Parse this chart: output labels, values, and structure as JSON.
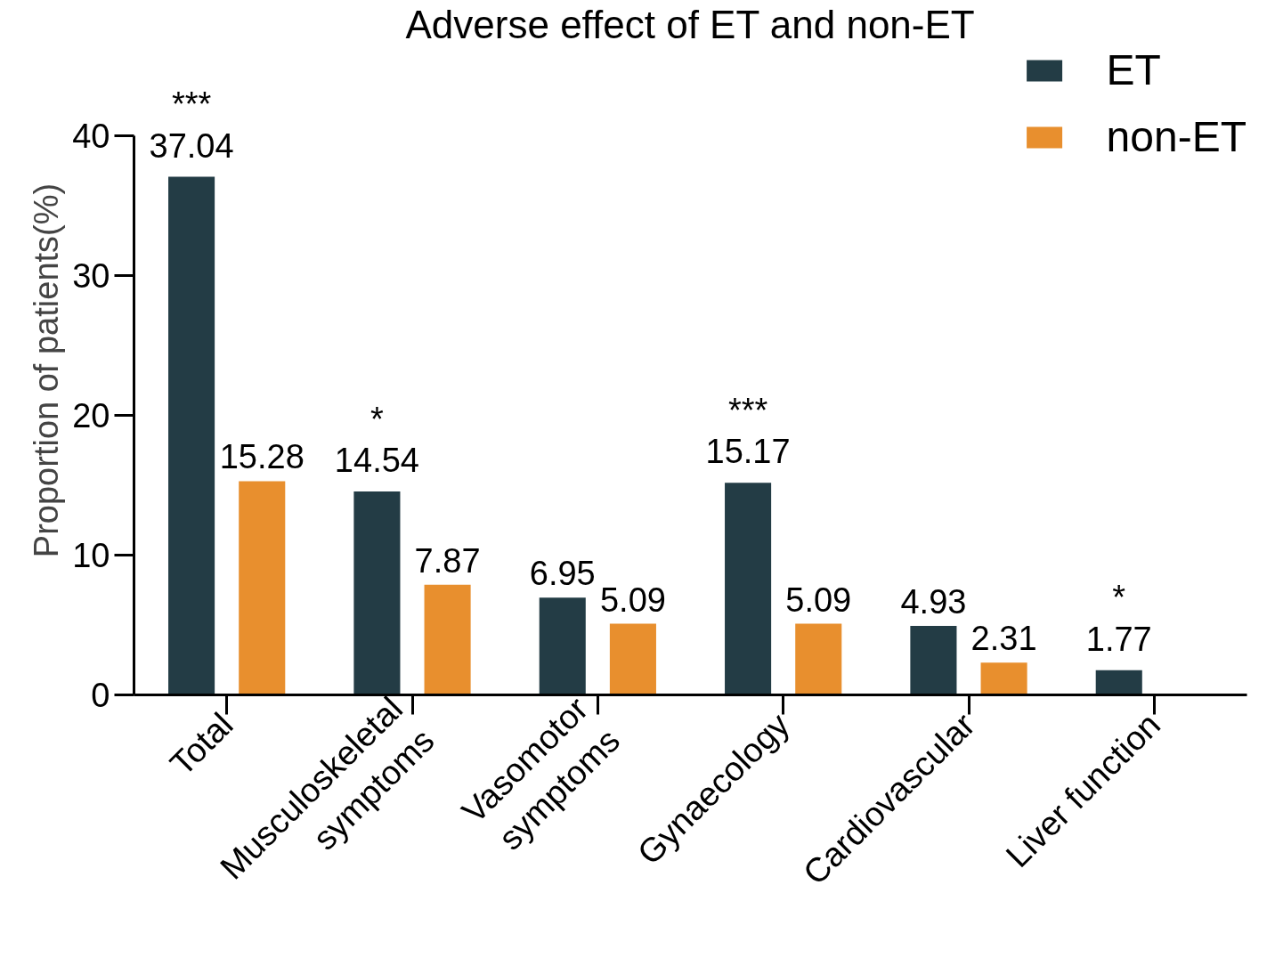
{
  "chart_data": {
    "type": "bar",
    "title": "Adverse effect of ET and non-ET",
    "ylabel": "Proportion of patients(%)",
    "categories": [
      "Total",
      "Musculoskeletal\nsymptoms",
      "Vasomotor\nsymptoms",
      "Gynaecology",
      "Cardiovascular",
      "Liver function"
    ],
    "series": [
      {
        "name": "ET",
        "color": "#233c45",
        "values": [
          37.04,
          14.54,
          6.95,
          15.17,
          4.93,
          1.77
        ],
        "value_labels": [
          "***\n37.04",
          "*\n14.54",
          "6.95",
          "***\n15.17",
          "4.93",
          "*\n1.77"
        ]
      },
      {
        "name": "non-ET",
        "color": "#e88f2e",
        "values": [
          15.28,
          7.87,
          5.09,
          5.09,
          2.31,
          null
        ],
        "value_labels": [
          "15.28",
          "7.87",
          "5.09",
          "5.09",
          "2.31",
          null
        ]
      }
    ],
    "ylim": [
      0,
      40
    ],
    "yticks": [
      0,
      10,
      20,
      30,
      40
    ],
    "grid": false,
    "legend": "top right"
  }
}
